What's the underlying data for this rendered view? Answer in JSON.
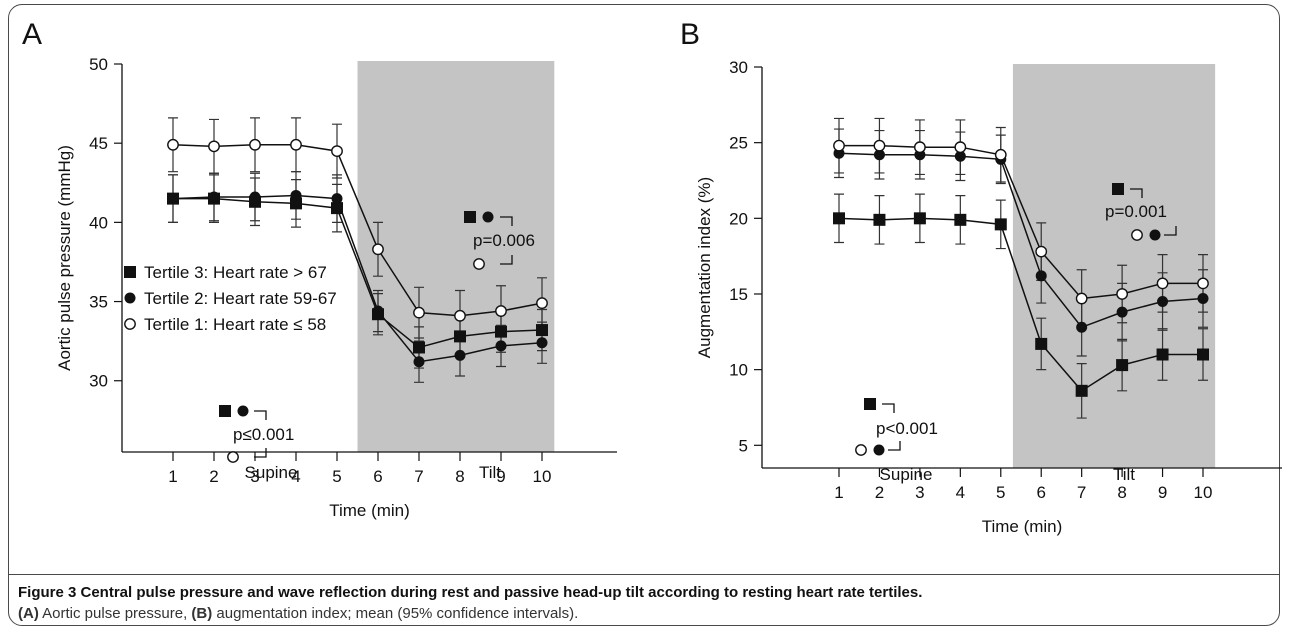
{
  "chart_data": [
    {
      "panel": "A",
      "type": "line",
      "ylabel": "Aortic pulse pressure (mmHg)",
      "xlabel": "Time (min)",
      "x": [
        1,
        2,
        3,
        4,
        5,
        6,
        7,
        8,
        9,
        10
      ],
      "xlim": [
        0.2,
        10.5
      ],
      "ylim": [
        25.5,
        50
      ],
      "yticks": [
        30,
        35,
        40,
        45,
        50
      ],
      "shaded_region": {
        "x_start": 5.5,
        "x_end": 10.3,
        "label": "Tilt"
      },
      "region_labels": {
        "supine": "Supine",
        "tilt": "Tilt"
      },
      "series": [
        {
          "name": "Tertile 3: Heart rate > 67",
          "marker": "square",
          "values": [
            41.5,
            41.5,
            41.3,
            41.2,
            40.9,
            34.2,
            32.1,
            32.8,
            33.1,
            33.2
          ],
          "ci": [
            1.5,
            1.5,
            1.5,
            1.5,
            1.5,
            1.3,
            1.3,
            1.3,
            1.3,
            1.3
          ]
        },
        {
          "name": "Tertile 2: Heart rate 59-67",
          "marker": "circle-filled",
          "values": [
            41.5,
            41.6,
            41.6,
            41.7,
            41.5,
            34.4,
            31.2,
            31.6,
            32.2,
            32.4
          ],
          "ci": [
            1.5,
            1.5,
            1.5,
            1.5,
            1.5,
            1.3,
            1.3,
            1.3,
            1.3,
            1.3
          ]
        },
        {
          "name": "Tertile 1: Heart rate ≤ 58",
          "marker": "circle-open",
          "values": [
            44.9,
            44.8,
            44.9,
            44.9,
            44.5,
            38.3,
            34.3,
            34.1,
            34.4,
            34.9
          ],
          "ci": [
            1.7,
            1.7,
            1.7,
            1.7,
            1.7,
            1.7,
            1.6,
            1.6,
            1.6,
            1.6
          ]
        }
      ],
      "annotations": [
        {
          "text": "p=0.006",
          "x": 8.2,
          "y": 40.3
        },
        {
          "text": "p≤0.001",
          "x": 3.2,
          "y": 29.2
        }
      ]
    },
    {
      "panel": "B",
      "type": "line",
      "ylabel": "Augmentation index (%)",
      "xlabel": "Time (min)",
      "x": [
        1,
        2,
        3,
        4,
        5,
        6,
        7,
        8,
        9,
        10
      ],
      "xlim": [
        0.2,
        10.5
      ],
      "ylim": [
        3.5,
        30
      ],
      "yticks": [
        5,
        10,
        15,
        20,
        25,
        30
      ],
      "shaded_region": {
        "x_start": 5.3,
        "x_end": 10.3,
        "label": "Tilt"
      },
      "region_labels": {
        "supine": "Supine",
        "tilt": "Tilt"
      },
      "series": [
        {
          "name": "Tertile 3: Heart rate > 67",
          "marker": "square",
          "values": [
            20.0,
            19.9,
            20.0,
            19.9,
            19.6,
            11.7,
            8.6,
            10.3,
            11.0,
            11.0
          ],
          "ci": [
            1.6,
            1.6,
            1.6,
            1.6,
            1.6,
            1.7,
            1.8,
            1.7,
            1.7,
            1.7
          ]
        },
        {
          "name": "Tertile 2: Heart rate 59-67",
          "marker": "circle-filled",
          "values": [
            24.3,
            24.2,
            24.2,
            24.1,
            23.9,
            16.2,
            12.8,
            13.8,
            14.5,
            14.7
          ],
          "ci": [
            1.6,
            1.6,
            1.6,
            1.6,
            1.6,
            1.8,
            1.9,
            1.9,
            1.9,
            1.9
          ]
        },
        {
          "name": "Tertile 1: Heart rate ≤ 58",
          "marker": "circle-open",
          "values": [
            24.8,
            24.8,
            24.7,
            24.7,
            24.2,
            17.8,
            14.7,
            15.0,
            15.7,
            15.7
          ],
          "ci": [
            1.8,
            1.8,
            1.8,
            1.8,
            1.8,
            1.9,
            1.9,
            1.9,
            1.9,
            1.9
          ]
        }
      ],
      "annotations": [
        {
          "text": "p=0.001",
          "x": 8.2,
          "y": 20.9
        },
        {
          "text": "p<0.001",
          "x": 3.0,
          "y": 7.1
        }
      ]
    }
  ],
  "caption": {
    "title": "Figure 3 Central pulse pressure and wave reflection during rest and passive head-up tilt according to resting heart rate tertiles.",
    "sub_a": "(A)",
    "sub_text_a": " Aortic pulse pressure, ",
    "sub_b": "(B)",
    "sub_text_b": " augmentation index; mean (95% confidence intervals)."
  }
}
